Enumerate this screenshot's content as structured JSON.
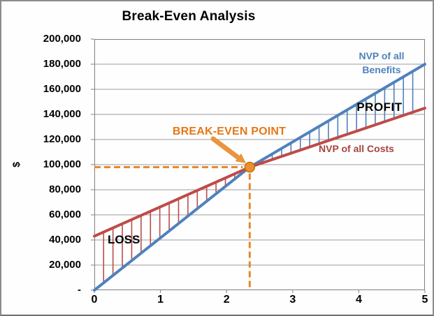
{
  "window": {
    "background": "#FEFEFE",
    "border_color": "#8C8C8C"
  },
  "chart_data": {
    "type": "line",
    "title": "Break-Even Analysis",
    "xlabel": "",
    "ylabel": "$",
    "xlim": [
      0,
      5
    ],
    "ylim": [
      0,
      200000
    ],
    "grid": "horizontal",
    "gridline_color": "#9C9C9C",
    "axis_color": "#808080",
    "x_ticks": [
      "0",
      "1",
      "2",
      "3",
      "4",
      "5"
    ],
    "y_tick_labels": [
      "200,000",
      "180,000",
      "160,000",
      "140,000",
      "120,000",
      "100,000",
      "80,000",
      "60,000",
      "40,000",
      "20,000",
      "-"
    ],
    "y_tick_values": [
      200000,
      180000,
      160000,
      140000,
      120000,
      100000,
      80000,
      60000,
      40000,
      20000,
      0
    ],
    "series": [
      {
        "role": "benefits",
        "name": "NVP of all Benefits",
        "color": "#4F81BD",
        "points": [
          [
            0,
            0
          ],
          [
            2.35,
            98000
          ],
          [
            5,
            180000
          ]
        ],
        "values_by_year": [
          0,
          42000,
          83000,
          119000,
          152000,
          180000
        ]
      },
      {
        "role": "costs",
        "name": "NVP of all Costs",
        "color": "#BE4B48",
        "points": [
          [
            0,
            43000
          ],
          [
            2.35,
            98000
          ],
          [
            5,
            145000
          ]
        ],
        "values_by_year": [
          43000,
          66000,
          90000,
          110000,
          127000,
          145000
        ]
      }
    ],
    "break_even_point": {
      "x": 2.35,
      "y": 98000
    },
    "marker": {
      "fill": "#EC8F2E",
      "stroke": "#C36F12"
    },
    "guide": {
      "color": "#E8862B",
      "style": "dashed"
    },
    "arrow_color": "#E9953F",
    "hatch": {
      "before_color": "#BE4B48",
      "after_color": "#4F81BD",
      "spacing_x": 0.1417,
      "start_x": 0.14,
      "end_x": 4.95
    },
    "annotations": {
      "break_even": "BREAK-EVEN POINT",
      "break_even_color": "#E57817",
      "loss": "LOSS",
      "profit": "PROFIT",
      "loss_profit_color": "#000000",
      "benefits_line1": "NVP of all",
      "benefits_line2": "Benefits",
      "benefits_color": "#4F81BD",
      "costs": "NVP of all Costs",
      "costs_color": "#A8443F"
    }
  }
}
